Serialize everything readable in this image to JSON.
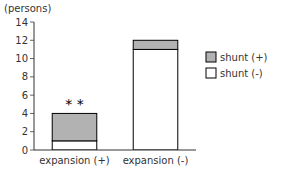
{
  "chart_data": {
    "type": "bar",
    "stacked": true,
    "y_label": "(persons)",
    "categories": [
      "expansion (+)",
      "expansion (-)"
    ],
    "series": [
      {
        "name": "shunt (-)",
        "color": "#ffffff",
        "values": [
          1,
          11
        ]
      },
      {
        "name": "shunt (+)",
        "color": "#b2b2b2",
        "values": [
          3,
          1
        ]
      }
    ],
    "annotations": [
      {
        "text": "* *",
        "x": "expansion (+)",
        "y": 4.3
      }
    ],
    "ylim": [
      0,
      14
    ],
    "yticks": [
      0,
      2,
      4,
      6,
      8,
      10,
      12,
      14
    ],
    "grid": false,
    "legend": "right"
  }
}
